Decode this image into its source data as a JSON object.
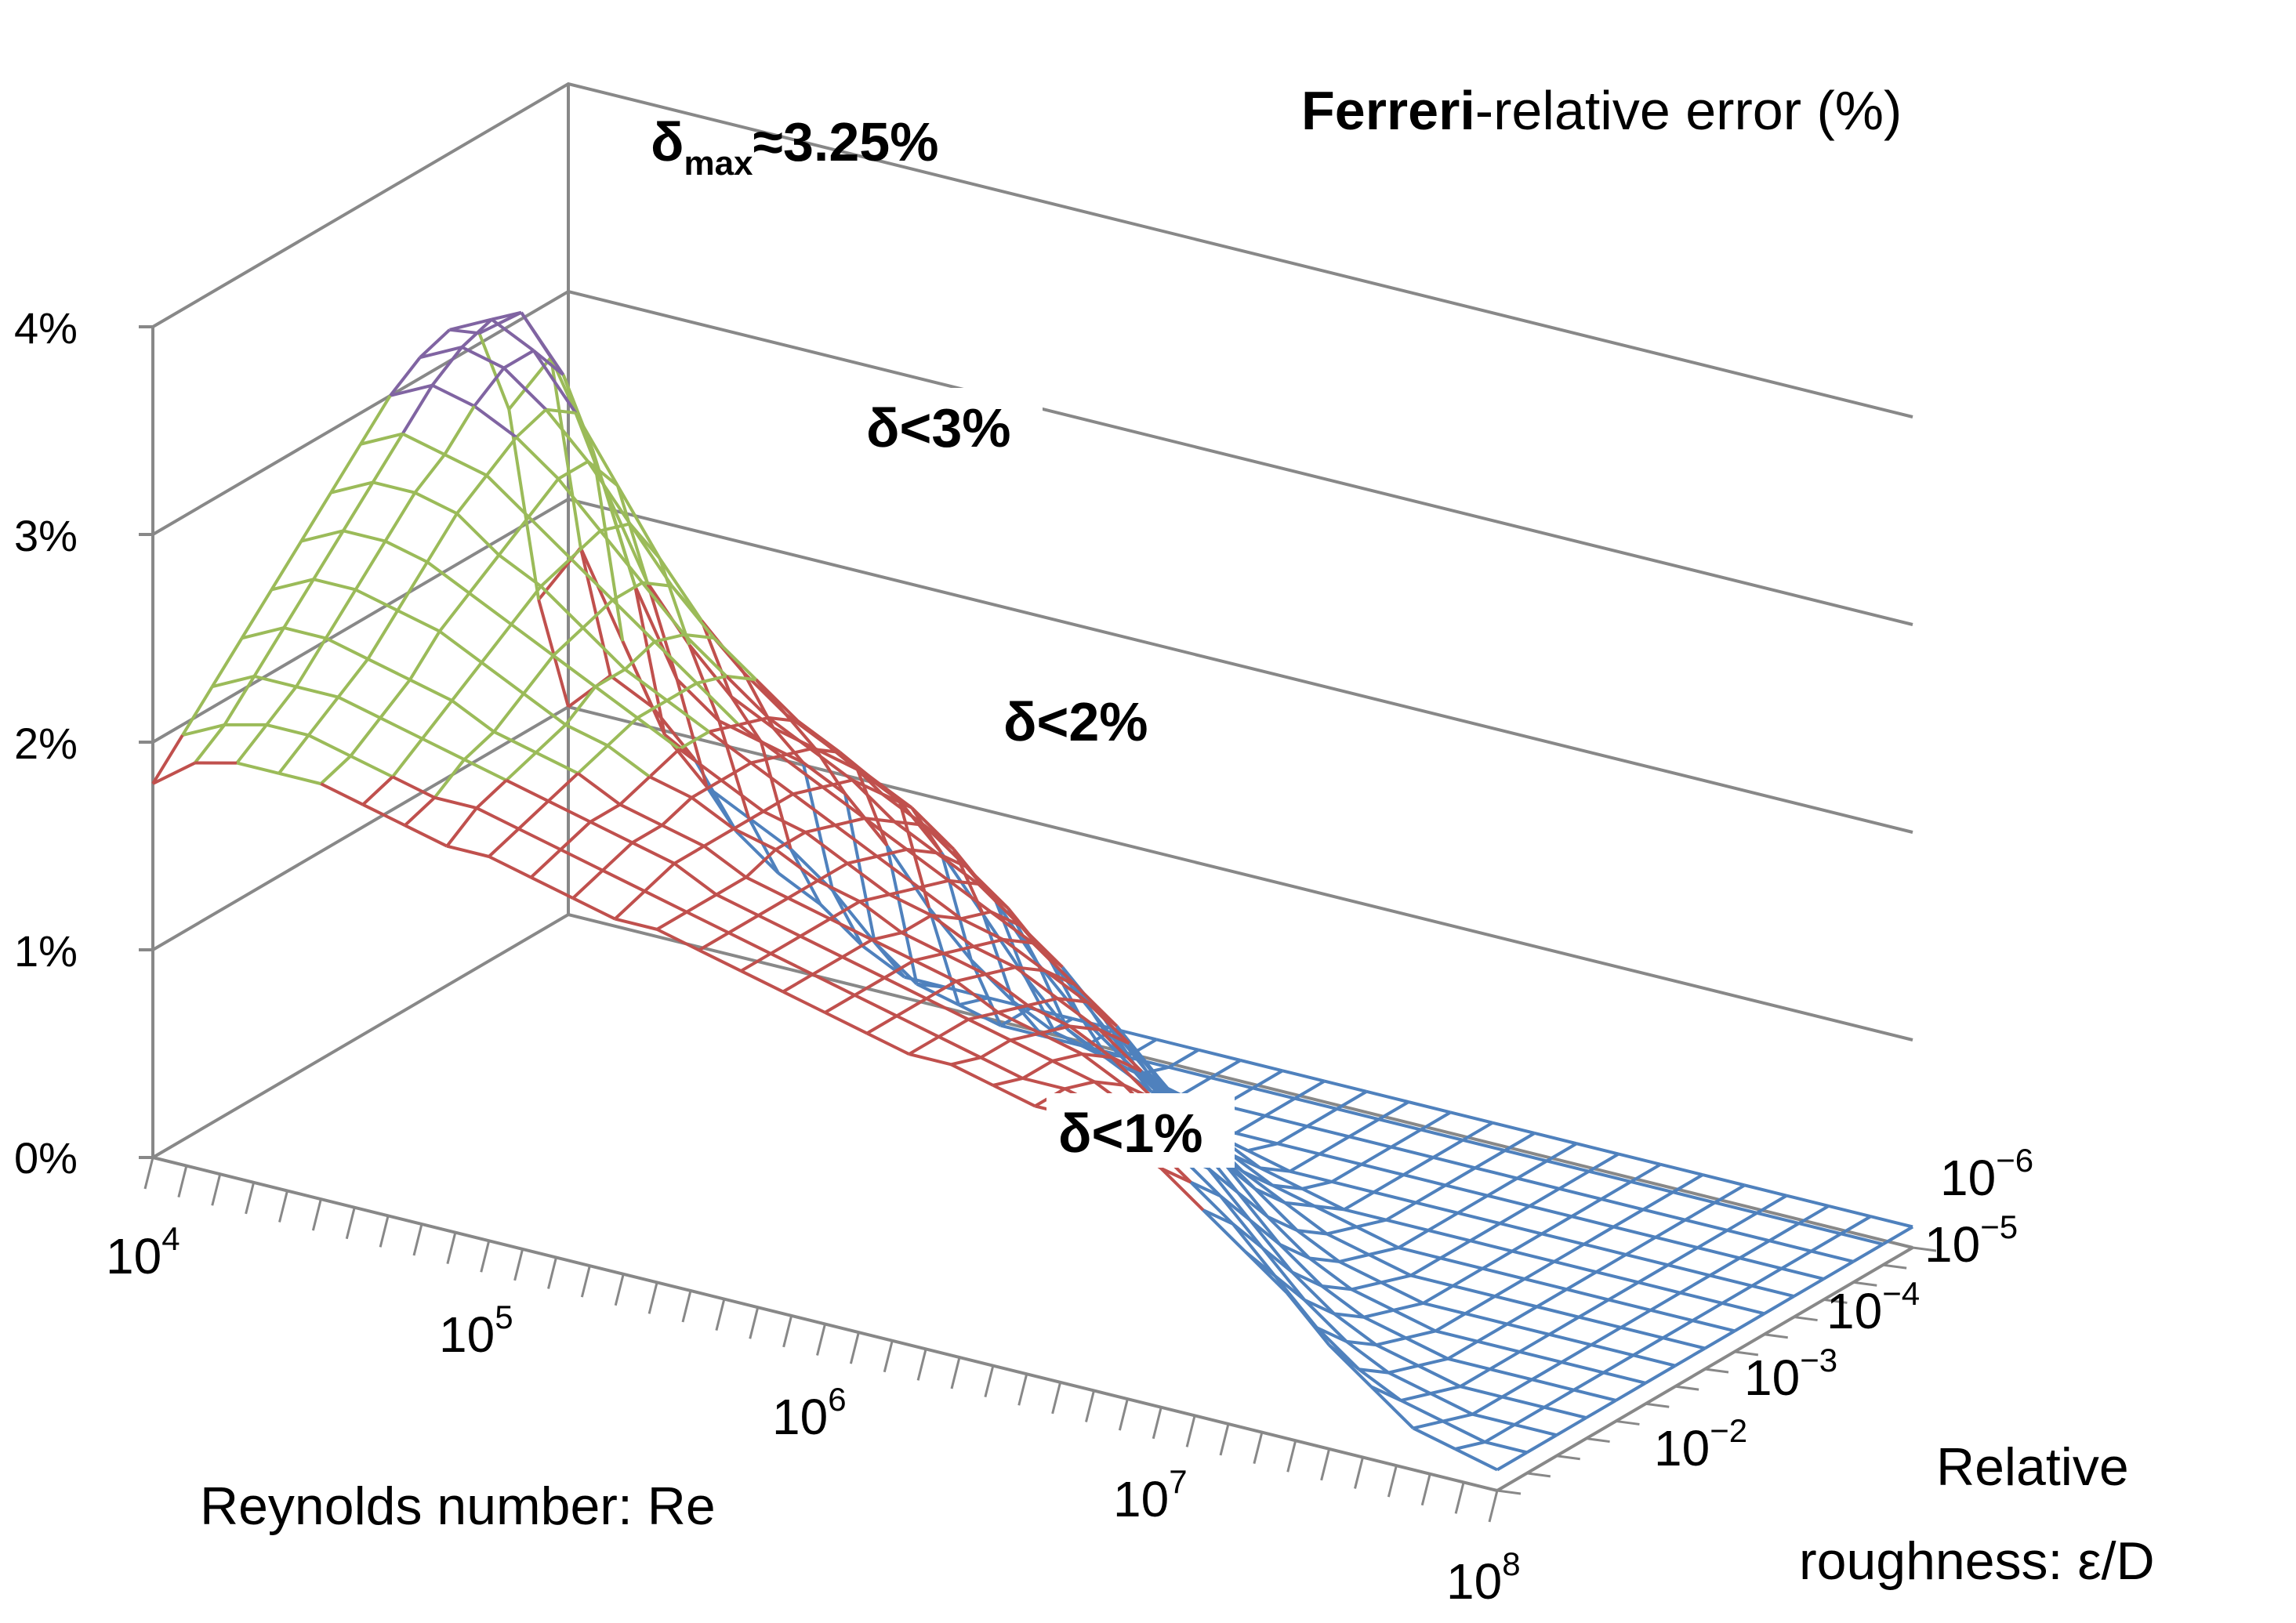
{
  "chart_data": {
    "type": "surface",
    "title_bold": "Ferreri",
    "title_rest": "-relative error (%)",
    "xlabel": "Reynolds number: Re",
    "ylabel_line1": "Relative",
    "ylabel_line2": "roughness: ε/D",
    "z_ticks": [
      "0%",
      "1%",
      "2%",
      "3%",
      "4%"
    ],
    "z_range": [
      0,
      4
    ],
    "re_ticks": [
      {
        "base": "10",
        "exp": "4"
      },
      {
        "base": "10",
        "exp": "5"
      },
      {
        "base": "10",
        "exp": "6"
      },
      {
        "base": "10",
        "exp": "7"
      },
      {
        "base": "10",
        "exp": "8"
      }
    ],
    "roughness_ticks": [
      {
        "base": "10",
        "exp": "−6"
      },
      {
        "base": "10",
        "exp": "−5"
      },
      {
        "base": "10",
        "exp": "−4"
      },
      {
        "base": "10",
        "exp": "−3"
      },
      {
        "base": "10",
        "exp": "−2"
      }
    ],
    "re_log_range": [
      4,
      8
    ],
    "roughness_log_range": [
      -2,
      -6
    ],
    "band_colors": [
      "#4f81bd",
      "#c0504d",
      "#9bbb59",
      "#8064a2"
    ],
    "band_ranges": [
      "0-1%",
      "1-2%",
      "2-3%",
      "3-4%"
    ],
    "annotations": {
      "max_prefix": "δ",
      "max_sub": "max",
      "max_value": "≈3.25%",
      "lt3": "δ<3%",
      "lt2": "δ<2%",
      "lt1": "δ<1%"
    },
    "surface_note": "Relative error (%) as a function of log10(Re) 4..8 and log10(ε/D) -2..-6; peak about 3.25% near Re=10^4, ε/D≈10^-2; ridge decreasing toward high Re and low roughness",
    "surface_z": [
      [
        1.0,
        1.2,
        1.1,
        0.9,
        0.6,
        0.45,
        0.35,
        0.2,
        0.1,
        0.1,
        0.1,
        0.1,
        0.1,
        0.1,
        0.1,
        0.1,
        0.1,
        0.1,
        0.1,
        0.1,
        0.1,
        0.1,
        0.1,
        0.1,
        0.1,
        0.1,
        0.1,
        0.1,
        0.1,
        0.1,
        0.1,
        0.1,
        0.1
      ],
      [
        1.6,
        1.9,
        1.5,
        1.1,
        0.9,
        0.8,
        0.7,
        0.55,
        0.35,
        0.2,
        0.15,
        0.1,
        0.1,
        0.1,
        0.1,
        0.1,
        0.1,
        0.1,
        0.1,
        0.1,
        0.1,
        0.1,
        0.1,
        0.1,
        0.1,
        0.1,
        0.1,
        0.1,
        0.1,
        0.1,
        0.1,
        0.1,
        0.1
      ],
      [
        2.6,
        2.9,
        2.5,
        1.9,
        1.5,
        1.35,
        1.3,
        1.25,
        1.15,
        0.95,
        0.7,
        0.5,
        0.35,
        0.25,
        0.2,
        0.15,
        0.1,
        0.1,
        0.1,
        0.1,
        0.1,
        0.1,
        0.1,
        0.1,
        0.1,
        0.1,
        0.1,
        0.1,
        0.1,
        0.1,
        0.1,
        0.1,
        0.1
      ],
      [
        3.05,
        3.2,
        2.95,
        2.45,
        2.05,
        1.8,
        1.6,
        1.5,
        1.45,
        1.4,
        1.3,
        1.1,
        0.85,
        0.6,
        0.4,
        0.3,
        0.2,
        0.15,
        0.1,
        0.1,
        0.1,
        0.1,
        0.1,
        0.1,
        0.1,
        0.1,
        0.1,
        0.1,
        0.1,
        0.1,
        0.1,
        0.1,
        0.1
      ],
      [
        3.15,
        3.25,
        3.15,
        2.9,
        2.6,
        2.3,
        2.05,
        1.85,
        1.7,
        1.6,
        1.5,
        1.4,
        1.25,
        1.05,
        0.8,
        0.6,
        0.45,
        0.3,
        0.2,
        0.15,
        0.1,
        0.1,
        0.1,
        0.1,
        0.1,
        0.1,
        0.1,
        0.1,
        0.1,
        0.1,
        0.1,
        0.1,
        0.1
      ],
      [
        3.1,
        3.2,
        3.15,
        3.0,
        2.8,
        2.55,
        2.3,
        2.1,
        1.95,
        1.8,
        1.7,
        1.55,
        1.45,
        1.3,
        1.15,
        0.95,
        0.75,
        0.55,
        0.4,
        0.3,
        0.2,
        0.15,
        0.1,
        0.1,
        0.1,
        0.1,
        0.1,
        0.1,
        0.1,
        0.1,
        0.1,
        0.1,
        0.1
      ],
      [
        3.0,
        3.1,
        3.05,
        2.95,
        2.8,
        2.6,
        2.4,
        2.2,
        2.05,
        1.9,
        1.8,
        1.7,
        1.55,
        1.45,
        1.35,
        1.2,
        1.05,
        0.85,
        0.65,
        0.5,
        0.35,
        0.25,
        0.2,
        0.15,
        0.1,
        0.1,
        0.1,
        0.1,
        0.1,
        0.1,
        0.1,
        0.1,
        0.1
      ],
      [
        2.85,
        2.95,
        2.9,
        2.85,
        2.7,
        2.55,
        2.4,
        2.25,
        2.1,
        1.95,
        1.85,
        1.75,
        1.65,
        1.55,
        1.45,
        1.35,
        1.25,
        1.1,
        0.95,
        0.75,
        0.55,
        0.4,
        0.3,
        0.2,
        0.15,
        0.1,
        0.1,
        0.1,
        0.1,
        0.1,
        0.1,
        0.1,
        0.1
      ],
      [
        2.7,
        2.8,
        2.8,
        2.75,
        2.6,
        2.5,
        2.35,
        2.2,
        2.1,
        2.0,
        1.9,
        1.8,
        1.7,
        1.6,
        1.5,
        1.4,
        1.35,
        1.25,
        1.15,
        1.0,
        0.8,
        0.6,
        0.45,
        0.3,
        0.2,
        0.15,
        0.1,
        0.1,
        0.1,
        0.1,
        0.1,
        0.1,
        0.1
      ],
      [
        2.55,
        2.65,
        2.65,
        2.6,
        2.5,
        2.4,
        2.3,
        2.2,
        2.1,
        2.0,
        1.9,
        1.8,
        1.75,
        1.65,
        1.55,
        1.5,
        1.4,
        1.35,
        1.25,
        1.15,
        1.0,
        0.85,
        0.65,
        0.45,
        0.3,
        0.2,
        0.15,
        0.1,
        0.1,
        0.1,
        0.1,
        0.1,
        0.1
      ],
      [
        2.4,
        2.5,
        2.5,
        2.45,
        2.4,
        2.3,
        2.2,
        2.1,
        2.05,
        1.95,
        1.9,
        1.8,
        1.75,
        1.65,
        1.6,
        1.5,
        1.45,
        1.4,
        1.3,
        1.25,
        1.15,
        1.0,
        0.85,
        0.65,
        0.45,
        0.3,
        0.2,
        0.15,
        0.1,
        0.1,
        0.1,
        0.1,
        0.1
      ],
      [
        2.25,
        2.35,
        2.35,
        2.3,
        2.25,
        2.2,
        2.1,
        2.05,
        2.0,
        1.9,
        1.85,
        1.8,
        1.7,
        1.65,
        1.6,
        1.55,
        1.5,
        1.45,
        1.35,
        1.3,
        1.25,
        1.15,
        1.0,
        0.85,
        0.65,
        0.45,
        0.3,
        0.2,
        0.15,
        0.1,
        0.1,
        0.1,
        0.1
      ],
      [
        2.1,
        2.2,
        2.2,
        2.2,
        2.15,
        2.1,
        2.05,
        2.0,
        1.95,
        1.9,
        1.85,
        1.8,
        1.7,
        1.65,
        1.6,
        1.55,
        1.5,
        1.45,
        1.4,
        1.35,
        1.3,
        1.25,
        1.15,
        1.0,
        0.85,
        0.65,
        0.45,
        0.3,
        0.2,
        0.15,
        0.1,
        0.1,
        0.1
      ],
      [
        1.95,
        2.05,
        2.1,
        2.1,
        2.05,
        2.0,
        1.95,
        1.95,
        1.9,
        1.85,
        1.8,
        1.75,
        1.7,
        1.65,
        1.6,
        1.55,
        1.5,
        1.45,
        1.4,
        1.35,
        1.3,
        1.3,
        1.25,
        1.15,
        1.0,
        0.85,
        0.65,
        0.45,
        0.3,
        0.2,
        0.15,
        0.1,
        0.1
      ],
      [
        1.8,
        1.95,
        2.0,
        2.0,
        2.0,
        1.95,
        1.9,
        1.85,
        1.85,
        1.8,
        1.75,
        1.7,
        1.7,
        1.65,
        1.6,
        1.55,
        1.5,
        1.45,
        1.4,
        1.4,
        1.35,
        1.3,
        1.3,
        1.25,
        1.15,
        1.0,
        0.85,
        0.7,
        0.5,
        0.35,
        0.2,
        0.15,
        0.1
      ]
    ]
  }
}
